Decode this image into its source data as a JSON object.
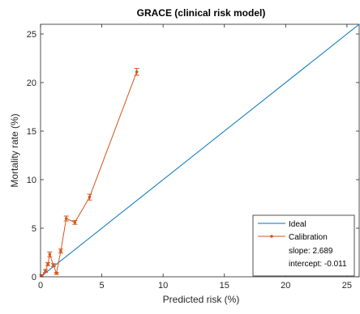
{
  "chart_data": {
    "type": "line",
    "title": "GRACE (clinical risk model)",
    "xlabel": "Predicted risk (%)",
    "ylabel": "Mortality rate (%)",
    "xlim": [
      0,
      26
    ],
    "ylim": [
      0,
      26
    ],
    "xticks": [
      0,
      5,
      10,
      15,
      20,
      25
    ],
    "yticks": [
      0,
      5,
      10,
      15,
      20,
      25
    ],
    "grid": false,
    "legend_placement": "bottom-right",
    "series": [
      {
        "name": "Ideal",
        "color": "#0072BD",
        "x": [
          0,
          26
        ],
        "y": [
          0,
          26
        ]
      },
      {
        "name": "Calibration",
        "color": "#D95319",
        "marker": "dot",
        "x": [
          0.1,
          0.4,
          0.6,
          0.75,
          1.05,
          1.3,
          1.65,
          2.1,
          2.8,
          4.0,
          7.85
        ],
        "y": [
          0.1,
          0.6,
          1.3,
          2.3,
          1.2,
          0.35,
          2.65,
          6.0,
          5.6,
          8.2,
          21.1
        ],
        "err": [
          0.1,
          0.15,
          0.15,
          0.25,
          0.15,
          0.1,
          0.2,
          0.25,
          0.2,
          0.3,
          0.35
        ]
      }
    ],
    "legend_notes": [
      "slope: 2.689",
      "intercept: -0.011"
    ]
  },
  "colors": {
    "axis": "#262626",
    "ideal": "#0072BD",
    "calibration": "#D95319"
  }
}
